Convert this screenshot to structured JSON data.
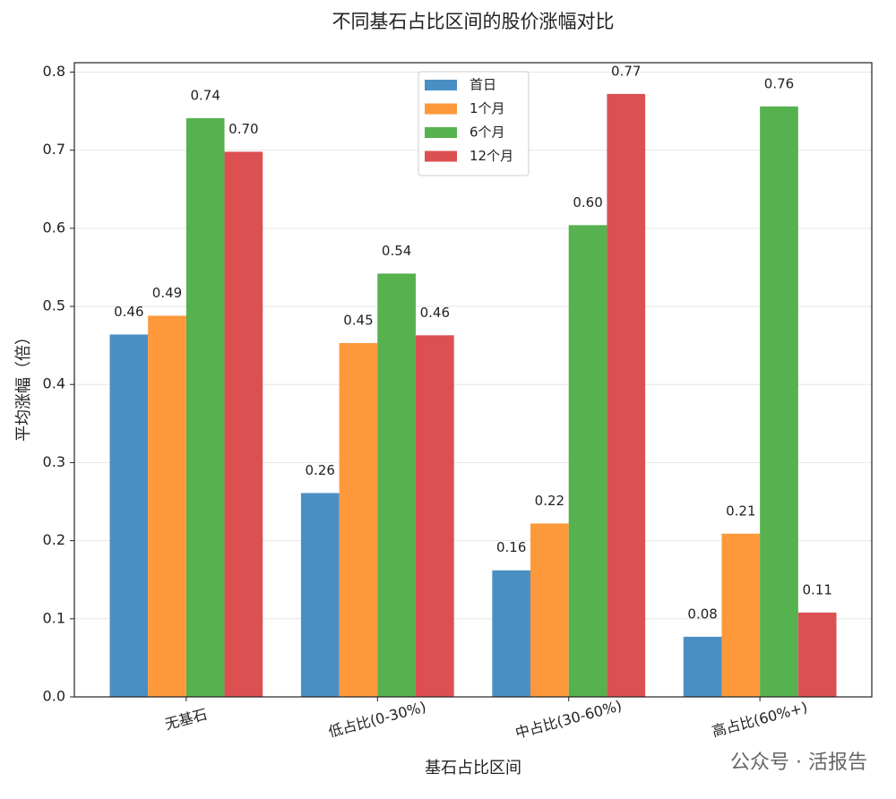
{
  "chart_data": {
    "type": "bar",
    "title": "不同基石占比区间的股价涨幅对比",
    "x_label": "基石占比区间",
    "y_label": "平均涨幅（倍）",
    "watermark": "公众号 · 活报告",
    "categories": [
      "无基石",
      "低占比(0-30%)",
      "中占比(30-60%)",
      "高占比(60%+)"
    ],
    "series": [
      {
        "name": "首日",
        "color": "#4a8fc4",
        "values": [
          0.464,
          0.261,
          0.162,
          0.077
        ],
        "value_labels": [
          "0.46",
          "0.26",
          "0.16",
          "0.08"
        ]
      },
      {
        "name": "1个月",
        "color": "#fd993a",
        "values": [
          0.488,
          0.453,
          0.222,
          0.209
        ],
        "value_labels": [
          "0.49",
          "0.45",
          "0.22",
          "0.21"
        ]
      },
      {
        "name": "6个月",
        "color": "#56b14f",
        "values": [
          0.741,
          0.542,
          0.604,
          0.756
        ],
        "value_labels": [
          "0.74",
          "0.54",
          "0.60",
          "0.76"
        ]
      },
      {
        "name": "12个月",
        "color": "#dc5052",
        "values": [
          0.698,
          0.463,
          0.772,
          0.108
        ],
        "value_labels": [
          "0.70",
          "0.46",
          "0.77",
          "0.11"
        ]
      }
    ],
    "ylim": [
      0,
      0.812
    ],
    "yticks": [
      {
        "value": 0,
        "label": "0.0"
      },
      0.1,
      0.2,
      0.3,
      0.4,
      0.5,
      0.6,
      0.7,
      0.8
    ],
    "grid": true,
    "legend": "upper center"
  }
}
